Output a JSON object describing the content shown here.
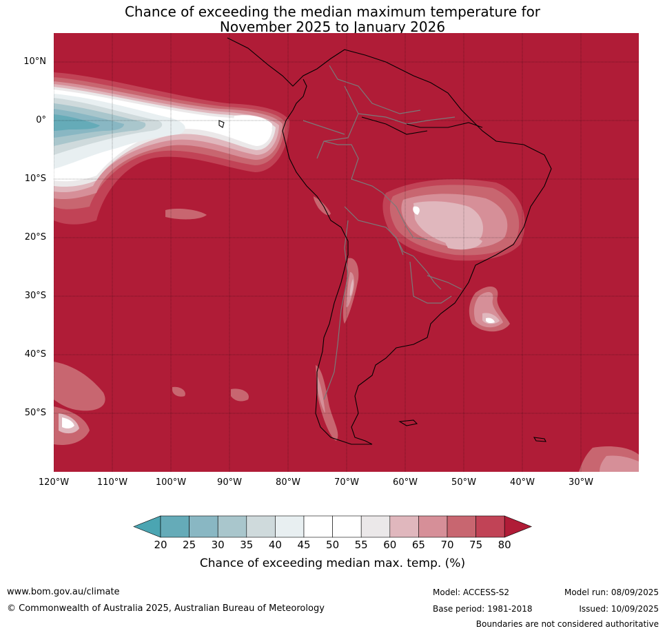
{
  "title": {
    "line1": "Chance of exceeding the median maximum temperature for",
    "line2": "November 2025 to January 2026"
  },
  "map": {
    "lat_labels": [
      "10°N",
      "0°",
      "10°S",
      "20°S",
      "30°S",
      "40°S",
      "50°S"
    ],
    "lon_labels": [
      "120°W",
      "110°W",
      "100°W",
      "90°W",
      "80°W",
      "70°W",
      "60°W",
      "50°W",
      "40°W",
      "30°W"
    ],
    "colors": {
      "c80": "#b01c37",
      "c75": "#c14356",
      "c70": "#c86670",
      "c65": "#d68f98",
      "c60": "#e0b7bd",
      "c55": "#ebe8e9",
      "c45": "#ffffff",
      "c40": "#e8eff1",
      "c35": "#cfdadc",
      "c30": "#a9c6cc",
      "c25": "#89b7c3",
      "c20": "#65abb8",
      "below20": "#4ba5b2"
    }
  },
  "colorbar": {
    "ticks": [
      "20",
      "25",
      "30",
      "35",
      "40",
      "45",
      "50",
      "55",
      "60",
      "65",
      "70",
      "75",
      "80"
    ],
    "caption": "Chance of exceeding median max. temp. (%)"
  },
  "footer": {
    "website": "www.bom.gov.au/climate",
    "copyright": "© Commonwealth of Australia 2025, Australian Bureau of Meteorology",
    "model": "Model: ACCESS-S2",
    "base_period": "Base period: 1981-2018",
    "model_run": "Model run: 08/09/2025",
    "issued": "Issued: 10/09/2025",
    "disclaimer": "Boundaries are not considered authoritative"
  }
}
